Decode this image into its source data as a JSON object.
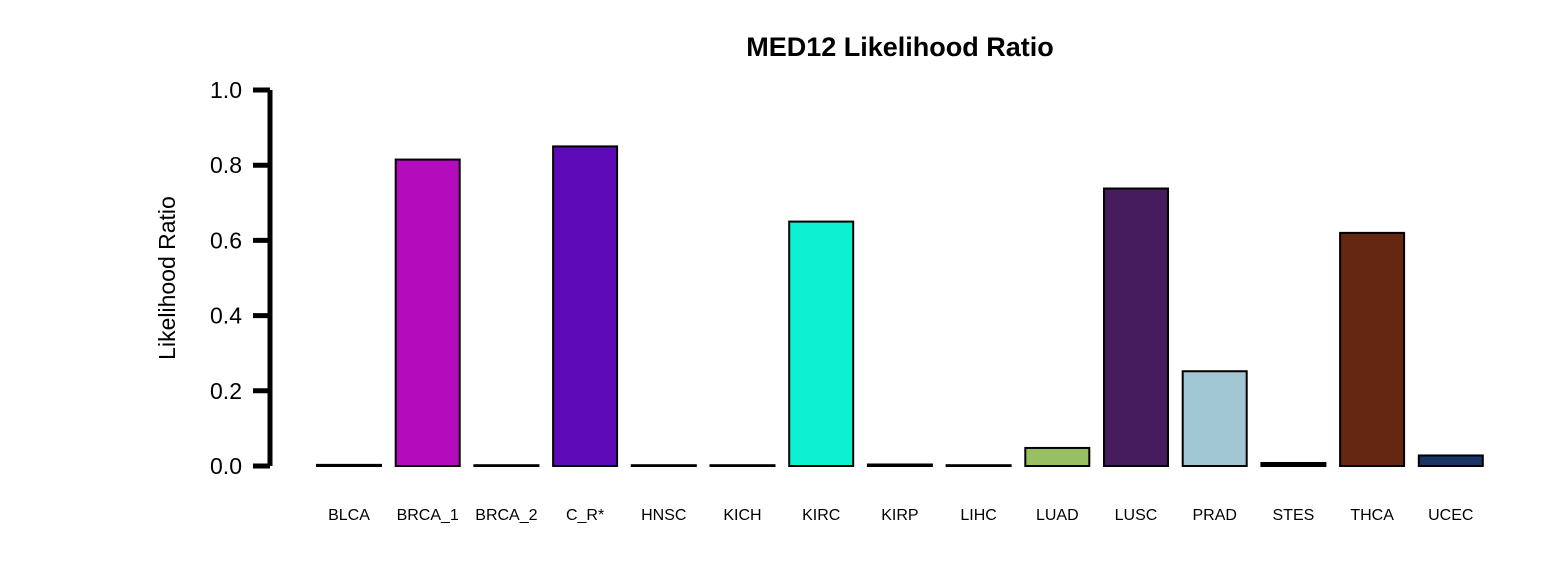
{
  "chart_data": {
    "type": "bar",
    "title": "MED12 Likelihood Ratio",
    "xlabel": "",
    "ylabel": "Likelihood Ratio",
    "ylim": [
      0,
      1
    ],
    "yticks": [
      "0.0",
      "0.2",
      "0.4",
      "0.6",
      "0.8",
      "1.0"
    ],
    "categories": [
      "BLCA",
      "BRCA_1",
      "BRCA_2",
      "C_R*",
      "HNSC",
      "KICH",
      "KIRC",
      "KIRP",
      "LIHC",
      "LUAD",
      "LUSC",
      "PRAD",
      "STES",
      "THCA",
      "UCEC"
    ],
    "values": [
      0.003,
      0.815,
      0.001,
      0.85,
      0.001,
      0.001,
      0.65,
      0.004,
      0.001,
      0.048,
      0.738,
      0.252,
      0.008,
      0.62,
      0.028
    ],
    "colors": [
      "#000000",
      "#b40bbc",
      "#000000",
      "#5c0bb7",
      "#000000",
      "#000000",
      "#0df0d1",
      "#000000",
      "#000000",
      "#98bf62",
      "#461c5e",
      "#a1c6d4",
      "#000000",
      "#652712",
      "#193466"
    ],
    "grid": false,
    "legend": "none"
  }
}
